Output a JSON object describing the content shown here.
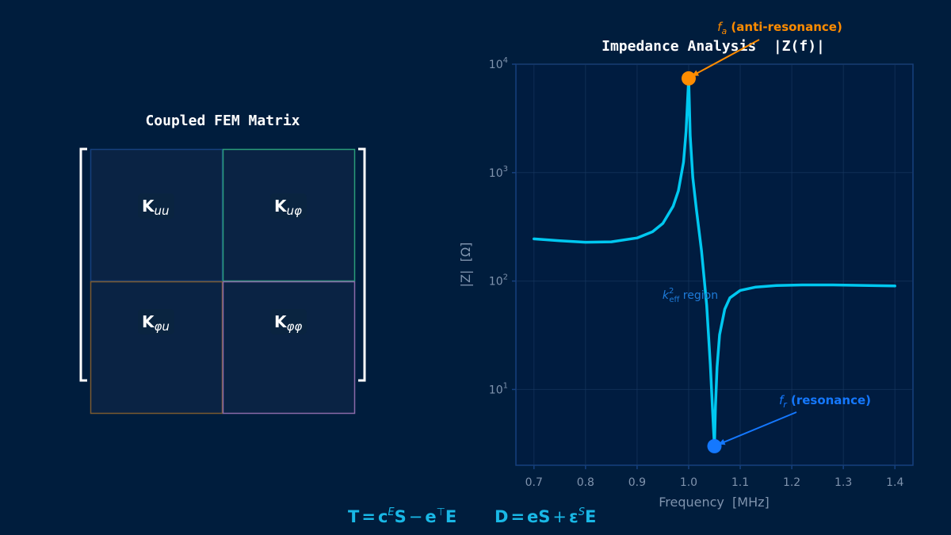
{
  "matrix": {
    "title": "Coupled FEM Matrix",
    "blocks": [
      {
        "base": "K",
        "sub": "uu",
        "color": "#0a6fe0"
      },
      {
        "base": "K",
        "sub": "uφ",
        "color": "#0f8f6a"
      },
      {
        "base": "K",
        "sub": "φu",
        "color": "#b5641c"
      },
      {
        "base": "K",
        "sub": "φφ",
        "color": "#6a3fc4"
      }
    ]
  },
  "chart_data": {
    "type": "line",
    "title": "Impedance Analysis  |Z(f)|",
    "xlabel": "Frequency  [MHz]",
    "ylabel": "|Z|  [Ω]",
    "yscale": "log",
    "xlim": [
      0.665,
      1.435
    ],
    "ylim": [
      2,
      10000
    ],
    "grid": true,
    "xticks": [
      "0.7",
      "0.8",
      "0.9",
      "1.0",
      "1.1",
      "1.2",
      "1.3",
      "1.4"
    ],
    "yticks": [
      {
        "base": "10",
        "exp": "1"
      },
      {
        "base": "10",
        "exp": "2"
      },
      {
        "base": "10",
        "exp": "3"
      },
      {
        "base": "10",
        "exp": "4"
      }
    ],
    "series": [
      {
        "color": "#00c8f0",
        "x": [
          0.7,
          0.75,
          0.8,
          0.85,
          0.9,
          0.93,
          0.95,
          0.97,
          0.98,
          0.99,
          0.995,
          1.0,
          1.003,
          1.008,
          1.015,
          1.025,
          1.035,
          1.042,
          1.046,
          1.048,
          1.05,
          1.052,
          1.055,
          1.06,
          1.07,
          1.08,
          1.1,
          1.13,
          1.17,
          1.22,
          1.28,
          1.35,
          1.4
        ],
        "y": [
          245,
          235,
          228,
          230,
          250,
          285,
          340,
          490,
          680,
          1250,
          2400,
          7400,
          2200,
          900,
          460,
          190,
          60,
          17,
          7,
          4.5,
          3.0,
          7,
          16,
          32,
          55,
          70,
          82,
          88,
          91,
          92,
          92,
          91,
          90
        ]
      }
    ],
    "points": [
      {
        "label_var": "f",
        "label_sub": "a",
        "label_text": " (anti-resonance)",
        "x": 1.0,
        "y": 7400,
        "color": "#ff8c00"
      },
      {
        "label_var": "f",
        "label_sub": "r",
        "label_text": " (resonance)",
        "x": 1.05,
        "y": 3.0,
        "color": "#1478ff"
      }
    ],
    "region_annotation": {
      "var": "k",
      "sup": "2",
      "sub": "eff",
      "text": " region",
      "x": 1.0,
      "y": 80,
      "color": "#1e7bd8"
    }
  },
  "equation": {
    "lhs1": "T",
    "c": "c",
    "cSup": "E",
    "s1": "S",
    "minus": "−",
    "e1": "e",
    "eSup": "⊤",
    "E1": "E",
    "lhs2": "D",
    "e2": "e",
    "s2": "S",
    "plus": "+",
    "eps": "ε",
    "epsSup": "S",
    "E2": "E",
    "color": "#19b8e6"
  }
}
